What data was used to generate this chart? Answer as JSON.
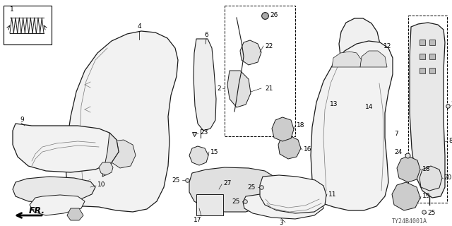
{
  "bg_color": "#ffffff",
  "fg_color": "#000000",
  "fig_width": 6.4,
  "fig_height": 3.2,
  "dpi": 100,
  "diagram_id": "TY24B4001A",
  "dark": "#1a1a1a",
  "gray": "#888888",
  "light_fill": "#f2f2f2",
  "mid_fill": "#e0e0e0",
  "dark_fill": "#cccccc"
}
